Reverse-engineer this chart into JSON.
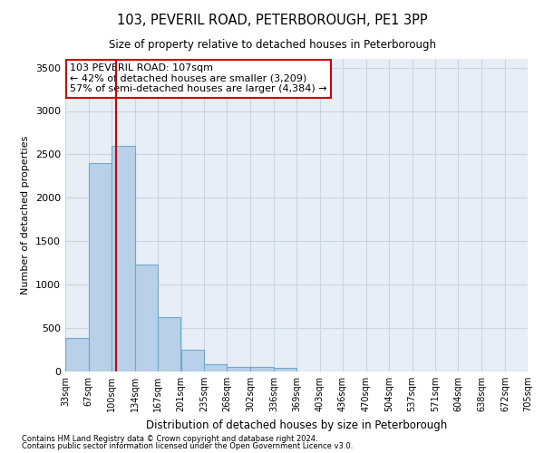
{
  "title1": "103, PEVERIL ROAD, PETERBOROUGH, PE1 3PP",
  "title2": "Size of property relative to detached houses in Peterborough",
  "xlabel": "Distribution of detached houses by size in Peterborough",
  "ylabel": "Number of detached properties",
  "footer1": "Contains HM Land Registry data © Crown copyright and database right 2024.",
  "footer2": "Contains public sector information licensed under the Open Government Licence v3.0.",
  "annotation_line1": "103 PEVERIL ROAD: 107sqm",
  "annotation_line2": "← 42% of detached houses are smaller (3,209)",
  "annotation_line3": "57% of semi-detached houses are larger (4,384) →",
  "bar_edges": [
    33,
    67,
    100,
    134,
    167,
    201,
    235,
    268,
    302,
    336,
    369,
    403,
    436,
    470,
    504,
    537,
    571,
    604,
    638,
    672,
    705
  ],
  "bar_heights": [
    390,
    2400,
    2600,
    1230,
    630,
    250,
    80,
    55,
    50,
    45,
    0,
    0,
    0,
    0,
    0,
    0,
    0,
    0,
    0,
    0
  ],
  "tick_labels": [
    "33sqm",
    "67sqm",
    "100sqm",
    "134sqm",
    "167sqm",
    "201sqm",
    "235sqm",
    "268sqm",
    "302sqm",
    "336sqm",
    "369sqm",
    "403sqm",
    "436sqm",
    "470sqm",
    "504sqm",
    "537sqm",
    "571sqm",
    "604sqm",
    "638sqm",
    "672sqm",
    "705sqm"
  ],
  "bar_color": "#b8d0e8",
  "bar_edge_color": "#6ea8d0",
  "vline_color": "#cc0000",
  "vline_x": 107,
  "annotation_box_color": "#cc0000",
  "grid_color": "#c8d4e4",
  "bg_color": "#e8eef6",
  "ylim": [
    0,
    3600
  ],
  "yticks": [
    0,
    500,
    1000,
    1500,
    2000,
    2500,
    3000,
    3500
  ]
}
